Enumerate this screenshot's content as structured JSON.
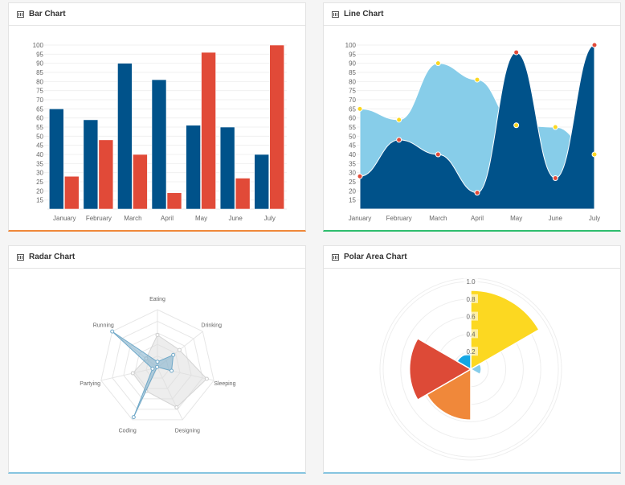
{
  "panels": {
    "bar": "Bar Chart",
    "line": "Line Chart",
    "radar": "Radar Chart",
    "polar": "Polar Area Chart"
  },
  "accents": {
    "bar": "#f0883a",
    "line": "#2ebd6e",
    "radar": "#86c5e0",
    "polar": "#86c5e0"
  },
  "chart_data": [
    {
      "type": "bar",
      "title": "Bar Chart",
      "categories": [
        "January",
        "February",
        "March",
        "April",
        "May",
        "June",
        "July"
      ],
      "series": [
        {
          "values": [
            65,
            59,
            90,
            81,
            56,
            55,
            40
          ],
          "color": "#00528a"
        },
        {
          "values": [
            28,
            48,
            40,
            19,
            96,
            27,
            100
          ],
          "color": "#e14a38"
        }
      ],
      "yticks": [
        15,
        20,
        25,
        30,
        35,
        40,
        45,
        50,
        55,
        60,
        65,
        70,
        75,
        80,
        85,
        90,
        95,
        100
      ],
      "ylim": [
        10,
        100
      ],
      "grid": true
    },
    {
      "type": "area",
      "title": "Line Chart",
      "categories": [
        "January",
        "February",
        "March",
        "April",
        "May",
        "June",
        "July"
      ],
      "series": [
        {
          "values": [
            65,
            59,
            90,
            81,
            56,
            55,
            40
          ],
          "color": "#87cde9",
          "point_color": "#fcd821"
        },
        {
          "values": [
            28,
            48,
            40,
            19,
            96,
            27,
            100
          ],
          "color": "#00528a",
          "point_color": "#e14a38"
        }
      ],
      "yticks": [
        15,
        20,
        25,
        30,
        35,
        40,
        45,
        50,
        55,
        60,
        65,
        70,
        75,
        80,
        85,
        90,
        95,
        100
      ],
      "ylim": [
        10,
        100
      ],
      "grid": true
    },
    {
      "type": "radar",
      "title": "Radar Chart",
      "categories": [
        "Eating",
        "Drinking",
        "Sleeping",
        "Designing",
        "Coding",
        "Partying",
        "Running"
      ],
      "series": [
        {
          "values": [
            65,
            59,
            90,
            81,
            56,
            55,
            40
          ],
          "color": "#dcdcdc"
        },
        {
          "values": [
            28,
            48,
            40,
            19,
            96,
            27,
            100
          ],
          "color": "#6fa8c8"
        }
      ],
      "rlim": [
        20,
        100
      ]
    },
    {
      "type": "polar",
      "title": "Polar Area Chart",
      "values": [
        0.9,
        0.12,
        0,
        0.58,
        0.7,
        0.18
      ],
      "colors": [
        "#fcd821",
        "#86cdea",
        "#cccccc",
        "#f0883a",
        "#dd4a37",
        "#13a6e4"
      ],
      "rticks": [
        "0.2",
        "0.4",
        "0.6",
        "0.8",
        "1.0"
      ],
      "rlim": [
        0,
        1
      ]
    }
  ]
}
